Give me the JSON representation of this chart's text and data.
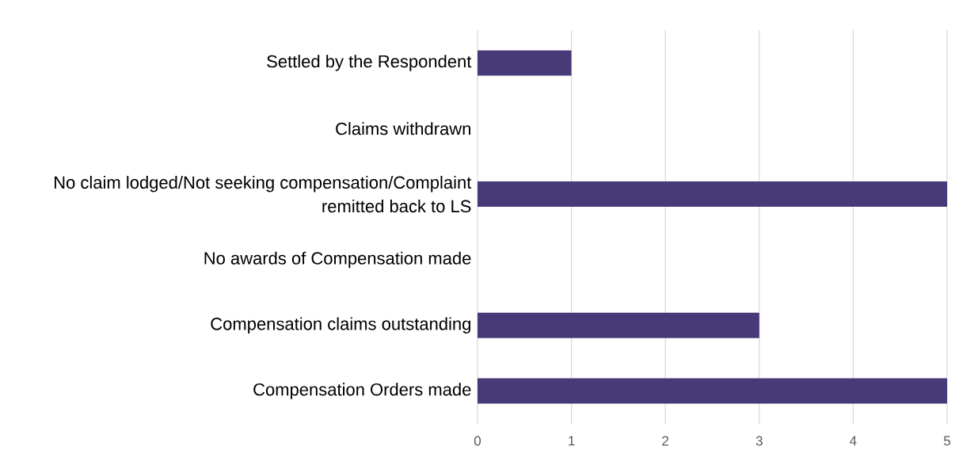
{
  "chart_data": {
    "type": "bar",
    "orientation": "horizontal",
    "categories": [
      "Settled by the Respondent",
      "Claims withdrawn",
      "No claim lodged/Not seeking compensation/Complaint remitted back to LS",
      "No awards of Compensation made",
      "Compensation claims outstanding",
      "Compensation Orders made"
    ],
    "values": [
      1,
      0,
      5,
      0,
      3,
      5
    ],
    "color": "#483a78",
    "xlim": [
      0,
      5
    ],
    "xticks": [
      0,
      1,
      2,
      3,
      4,
      5
    ],
    "grid": "x"
  }
}
